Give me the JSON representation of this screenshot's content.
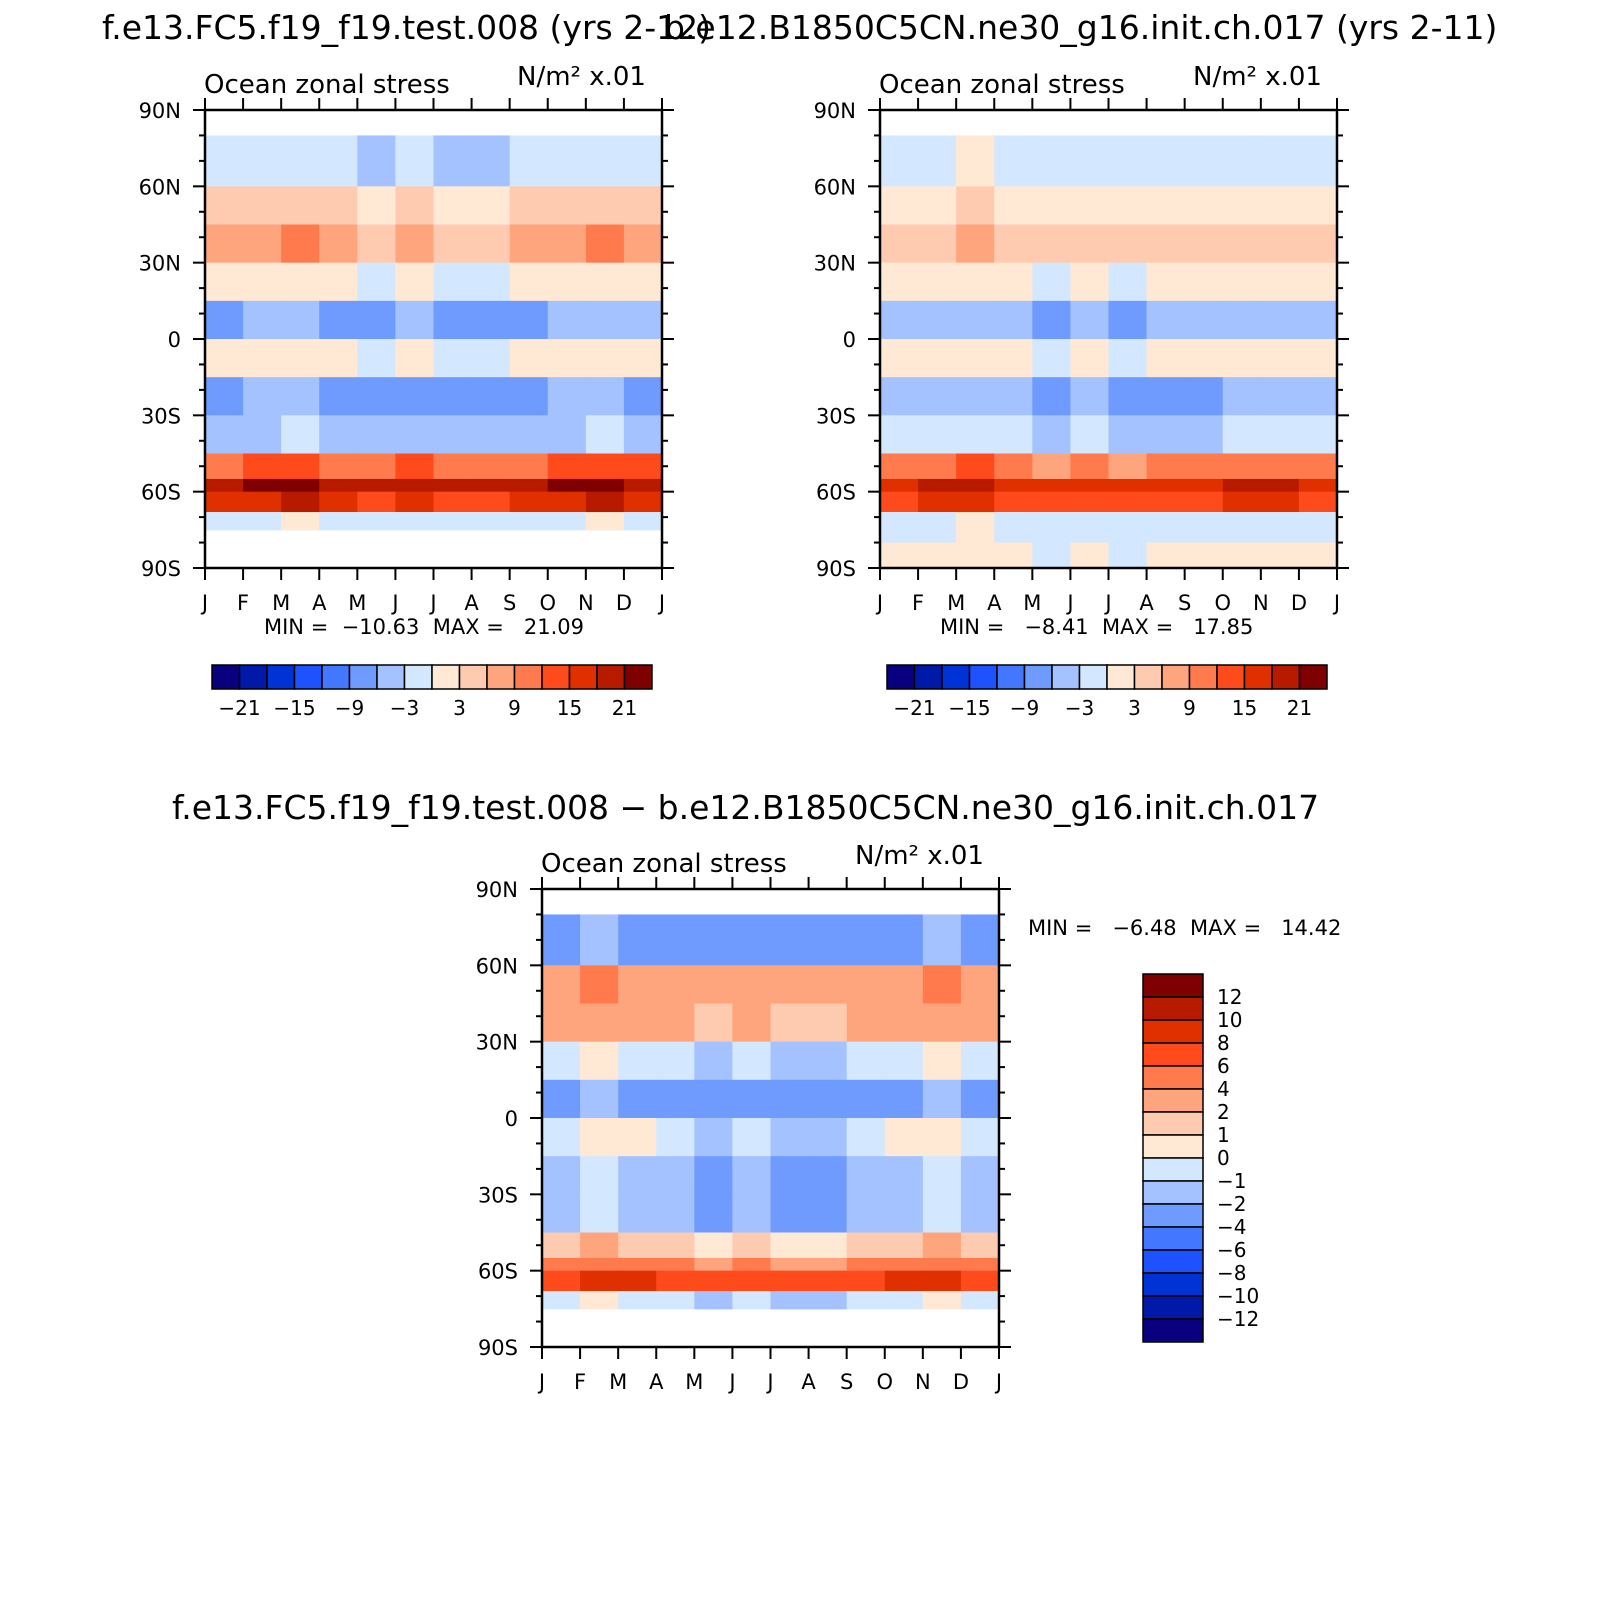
{
  "colors": {
    "abs_levels": [
      "#08007f",
      "#0019a8",
      "#0033d6",
      "#1f52ff",
      "#4477ff",
      "#6f9bff",
      "#a3c2ff",
      "#d3e8ff",
      "#ffe9d4",
      "#ffcbb0",
      "#ffa57e",
      "#ff7a4c",
      "#ff4a1c",
      "#e03000",
      "#b81a00",
      "#7f0000"
    ],
    "diff_levels": [
      "#08007f",
      "#0019a8",
      "#0033d6",
      "#1f52ff",
      "#4477ff",
      "#6f9bff",
      "#a3c2ff",
      "#d3e8ff",
      "#ffe9d4",
      "#ffcbb0",
      "#ffa57e",
      "#ff7a4c",
      "#ff4a1c",
      "#e03000",
      "#b81a00",
      "#7f0000"
    ]
  },
  "chart_data": [
    {
      "type": "heatmap",
      "title": "f.e13.FC5.f19_f19.test.008 (yrs 2-12)",
      "subtitle_left": "Ocean zonal stress",
      "subtitle_right": "N/m² x.01",
      "xlabel": "",
      "ylabel": "",
      "x_ticks": [
        "J",
        "F",
        "M",
        "A",
        "M",
        "J",
        "J",
        "A",
        "S",
        "O",
        "N",
        "D",
        "J"
      ],
      "y_ticks": [
        "90N",
        "60N",
        "30N",
        "0",
        "30S",
        "60S",
        "90S"
      ],
      "ylim": [
        -90,
        90
      ],
      "min_max_text": "MIN =  −10.63  MAX =   21.09",
      "min": -10.63,
      "max": 21.09,
      "colorbar_labels": [
        "−21",
        "−15",
        "−9",
        "−3",
        "3",
        "9",
        "15",
        "21"
      ],
      "lat_bands": [
        80,
        60,
        45,
        30,
        15,
        0,
        -15,
        -30,
        -45,
        -55,
        -60,
        -68
      ],
      "profile": [
        -2,
        4,
        7,
        1,
        -6,
        1,
        -7,
        -4,
        12,
        20,
        16,
        -1
      ],
      "seasonal": [
        -1,
        1,
        2,
        -1,
        -2,
        0,
        -2,
        -2,
        -1,
        1,
        2,
        0
      ]
    },
    {
      "type": "heatmap",
      "title": "b.e12.B1850C5CN.ne30_g16.init.ch.017 (yrs 2-11)",
      "subtitle_left": "Ocean zonal stress",
      "subtitle_right": "N/m² x.01",
      "xlabel": "",
      "ylabel": "",
      "x_ticks": [
        "J",
        "F",
        "M",
        "A",
        "M",
        "J",
        "J",
        "A",
        "S",
        "O",
        "N",
        "D",
        "J"
      ],
      "y_ticks": [
        "90N",
        "60N",
        "30N",
        "0",
        "30S",
        "60S",
        "90S"
      ],
      "ylim": [
        -90,
        90
      ],
      "min_max_text": "MIN =   −8.41  MAX =   17.85",
      "min": -8.41,
      "max": 17.85,
      "colorbar_labels": [
        "−21",
        "−15",
        "−9",
        "−3",
        "3",
        "9",
        "15",
        "21"
      ],
      "lat_bands": [
        80,
        60,
        45,
        30,
        15,
        0,
        -15,
        -30,
        -45,
        -55,
        -60,
        -68,
        -80
      ],
      "profile": [
        -1,
        2,
        5,
        1,
        -5,
        1,
        -6,
        -3,
        10,
        17,
        14,
        -1,
        1
      ],
      "seasonal": [
        0,
        1,
        2,
        0,
        -2,
        0,
        -2,
        -1,
        -1,
        1,
        1,
        0,
        0
      ]
    },
    {
      "type": "heatmap",
      "title": "f.e13.FC5.f19_f19.test.008 − b.e12.B1850C5CN.ne30_g16.init.ch.017",
      "subtitle_left": "Ocean zonal stress",
      "subtitle_right": "N/m² x.01",
      "xlabel": "",
      "ylabel": "",
      "x_ticks": [
        "J",
        "F",
        "M",
        "A",
        "M",
        "J",
        "J",
        "A",
        "S",
        "O",
        "N",
        "D",
        "J"
      ],
      "y_ticks": [
        "90N",
        "60N",
        "30N",
        "0",
        "30S",
        "60S",
        "90S"
      ],
      "ylim": [
        -90,
        90
      ],
      "min_max_text": "MIN =   −6.48  MAX =   14.42",
      "min": -6.48,
      "max": 14.42,
      "colorbar_labels": [
        "12",
        "10",
        "8",
        "6",
        "4",
        "2",
        "1",
        "0",
        "−1",
        "−2",
        "−4",
        "−6",
        "−8",
        "−10",
        "−12"
      ],
      "lat_bands": [
        80,
        60,
        45,
        30,
        15,
        0,
        -15,
        -30,
        -45,
        -55,
        -60,
        -68
      ],
      "profile": [
        -3,
        3,
        2,
        -1,
        -3,
        -0.5,
        -2,
        -2,
        1,
        4,
        7,
        -1
      ],
      "seasonal": [
        0,
        2,
        1,
        0,
        -1,
        0,
        -1,
        -1,
        0,
        1,
        2,
        0
      ]
    }
  ]
}
